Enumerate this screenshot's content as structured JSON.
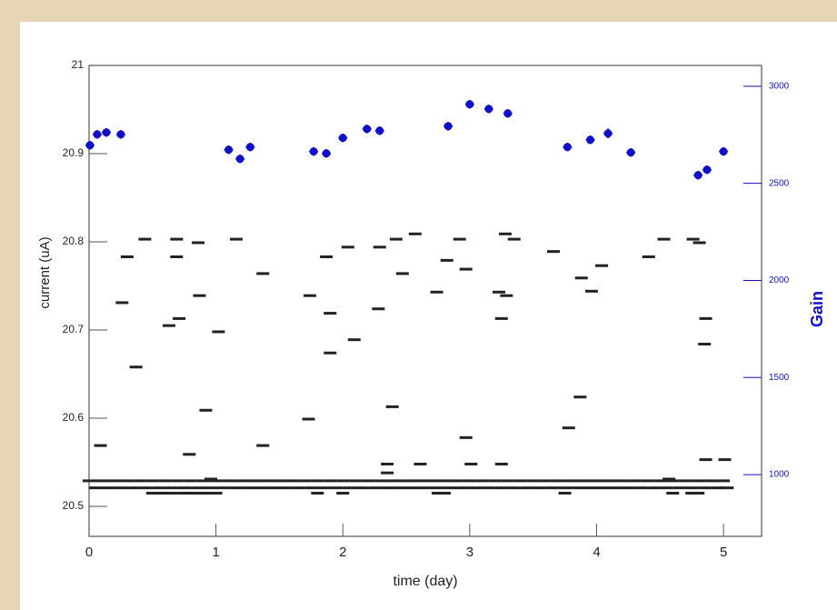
{
  "chart_data": {
    "type": "scatter",
    "xlabel": "time (day)",
    "ylabel": "current (uA)",
    "y2label": "Gain",
    "xlim": [
      0,
      5.3
    ],
    "ylim": [
      20.466,
      21
    ],
    "y2lim": [
      682,
      3107
    ],
    "xticks": [
      0,
      1,
      2,
      3,
      4,
      5
    ],
    "yticks": [
      20.5,
      20.6,
      20.7,
      20.8,
      20.9,
      21
    ],
    "y2ticks": [
      1000,
      1500,
      2000,
      2500,
      3000
    ],
    "series": [
      {
        "color": "#222222",
        "x": [
          0.09,
          0.26,
          0.3,
          0.37,
          0.44,
          0.63,
          0.69,
          0.69,
          0.71,
          0.79,
          0.86,
          0.87,
          0.92,
          1.02,
          1.16,
          1.37,
          1.37,
          1.74,
          1.73,
          1.87,
          1.9,
          1.9,
          2.04,
          2.09,
          2.28,
          2.29,
          2.35,
          2.39,
          2.42,
          2.47,
          2.57,
          2.61,
          2.74,
          2.82,
          2.92,
          2.97,
          2.97,
          3.01,
          3.23,
          3.25,
          3.28,
          3.29,
          3.35,
          3.25,
          3.66,
          3.78,
          3.87,
          3.88,
          3.96,
          4.04,
          4.41,
          4.53,
          4.76,
          4.81,
          4.86,
          4.85,
          4.86,
          5.01,
          4.57,
          0.96,
          2.35,
          0,
          0.1,
          0.2,
          0.3,
          0.4,
          0.5,
          0.6,
          0.7,
          0.8,
          0.9,
          1,
          1.1,
          1.2,
          1.3,
          1.4,
          1.5,
          1.6,
          1.7,
          1.8,
          1.9,
          2,
          2.1,
          2.2,
          2.3,
          2.4,
          2.5,
          2.6,
          2.7,
          2.8,
          2.9,
          3,
          3.1,
          3.2,
          3.3,
          3.4,
          3.5,
          3.6,
          3.7,
          3.8,
          3.9,
          4,
          4.1,
          4.2,
          4.3,
          4.4,
          4.5,
          4.6,
          4.7,
          4.8,
          4.9,
          5,
          0.05,
          0.15,
          0.25,
          0.35,
          0.45,
          0.55,
          0.65,
          0.75,
          0.85,
          0.95,
          1.05,
          1.15,
          1.25,
          1.35,
          1.45,
          1.55,
          1.65,
          1.75,
          1.85,
          1.95,
          2.05,
          2.15,
          2.25,
          2.35,
          2.45,
          2.55,
          2.65,
          2.75,
          2.85,
          2.95,
          3.05,
          3.15,
          3.25,
          3.35,
          3.45,
          3.55,
          3.65,
          3.75,
          3.85,
          3.95,
          4.05,
          4.15,
          4.25,
          4.35,
          4.45,
          4.55,
          4.65,
          4.75,
          4.85,
          4.95,
          5.03,
          0.5,
          0.55,
          0.6,
          0.65,
          0.75,
          0.8,
          0.85,
          0.9,
          0.95,
          1.0,
          1.8,
          2.0,
          2.75,
          2.8,
          3.75,
          4.6,
          4.75,
          4.8
        ],
        "values": [
          20.569,
          20.731,
          20.783,
          20.658,
          20.803,
          20.705,
          20.803,
          20.783,
          20.713,
          20.559,
          20.799,
          20.739,
          20.609,
          20.698,
          20.803,
          20.764,
          20.569,
          20.739,
          20.599,
          20.783,
          20.719,
          20.674,
          20.794,
          20.689,
          20.724,
          20.794,
          20.548,
          20.613,
          20.803,
          20.764,
          20.809,
          20.548,
          20.743,
          20.779,
          20.803,
          20.769,
          20.578,
          20.548,
          20.743,
          20.713,
          20.809,
          20.739,
          20.803,
          20.548,
          20.789,
          20.589,
          20.624,
          20.759,
          20.744,
          20.773,
          20.783,
          20.803,
          20.803,
          20.799,
          20.713,
          20.684,
          20.553,
          20.553,
          20.531,
          20.531,
          20.538,
          20.529,
          20.529,
          20.529,
          20.529,
          20.529,
          20.529,
          20.529,
          20.529,
          20.529,
          20.529,
          20.529,
          20.529,
          20.529,
          20.529,
          20.529,
          20.529,
          20.529,
          20.529,
          20.529,
          20.529,
          20.529,
          20.529,
          20.529,
          20.529,
          20.529,
          20.529,
          20.529,
          20.529,
          20.529,
          20.529,
          20.529,
          20.529,
          20.529,
          20.529,
          20.529,
          20.529,
          20.529,
          20.529,
          20.529,
          20.529,
          20.529,
          20.529,
          20.529,
          20.529,
          20.529,
          20.529,
          20.529,
          20.529,
          20.529,
          20.529,
          20.529,
          20.521,
          20.521,
          20.521,
          20.521,
          20.521,
          20.521,
          20.521,
          20.521,
          20.521,
          20.521,
          20.521,
          20.521,
          20.521,
          20.521,
          20.521,
          20.521,
          20.521,
          20.521,
          20.521,
          20.521,
          20.521,
          20.521,
          20.521,
          20.521,
          20.521,
          20.521,
          20.521,
          20.521,
          20.521,
          20.521,
          20.521,
          20.521,
          20.521,
          20.521,
          20.521,
          20.521,
          20.521,
          20.521,
          20.521,
          20.521,
          20.521,
          20.521,
          20.521,
          20.521,
          20.521,
          20.521,
          20.521,
          20.521,
          20.521,
          20.521,
          20.521,
          20.515,
          20.515,
          20.515,
          20.515,
          20.515,
          20.515,
          20.515,
          20.515,
          20.515,
          20.515,
          20.515,
          20.515,
          20.515,
          20.515,
          20.515,
          20.515,
          20.515,
          20.515
        ]
      },
      {
        "color": "#1010c8",
        "axis": "y2",
        "x": [
          0.007,
          0.064,
          0.136,
          0.25,
          1.1,
          1.19,
          1.27,
          1.77,
          1.87,
          2.0,
          2.19,
          2.29,
          2.83,
          3.0,
          3.15,
          3.3,
          3.77,
          3.95,
          4.09,
          4.27,
          4.8,
          4.87,
          5.0
        ],
        "values": [
          2696,
          2752,
          2762,
          2752,
          2673,
          2626,
          2687,
          2664,
          2654,
          2734,
          2780,
          2771,
          2794,
          2907,
          2883,
          2860,
          2687,
          2724,
          2757,
          2659,
          2542,
          2570,
          2664
        ],
        "errors": [
          22,
          22,
          22,
          22,
          22,
          22,
          22,
          22,
          22,
          22,
          22,
          22,
          22,
          22,
          22,
          22,
          22,
          22,
          25,
          22,
          22,
          22,
          22
        ]
      }
    ]
  }
}
